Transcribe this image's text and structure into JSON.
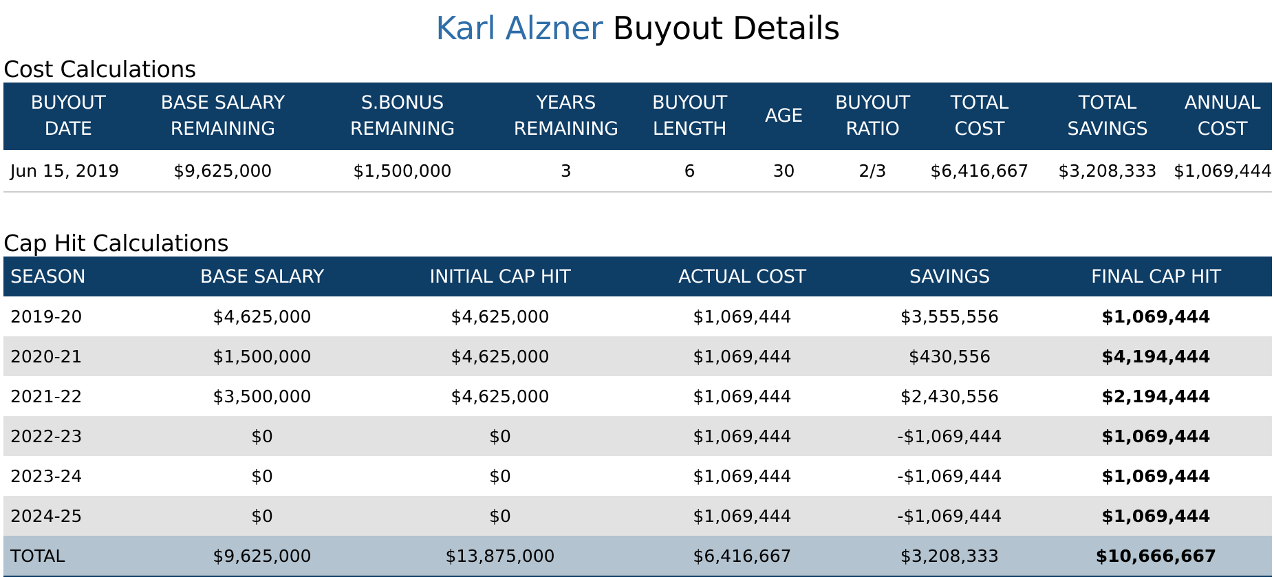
{
  "page": {
    "player_name": "Karl Alzner",
    "title_suffix": "Buyout Details"
  },
  "cost": {
    "section_title": "Cost Calculations",
    "header": {
      "buyout_date": [
        "BUYOUT",
        "DATE"
      ],
      "base_salary_remaining": [
        "BASE SALARY",
        "REMAINING"
      ],
      "sbonus_remaining": [
        "S.BONUS",
        "REMAINING"
      ],
      "years_remaining": [
        "YEARS",
        "REMAINING"
      ],
      "buyout_length": [
        "BUYOUT",
        "LENGTH"
      ],
      "age": "AGE",
      "buyout_ratio": [
        "BUYOUT",
        "RATIO"
      ],
      "total_cost": [
        "TOTAL",
        "COST"
      ],
      "total_savings": [
        "TOTAL",
        "SAVINGS"
      ],
      "annual_cost": [
        "ANNUAL",
        "COST"
      ]
    },
    "row": {
      "buyout_date": "Jun 15, 2019",
      "base_salary_remaining": "$9,625,000",
      "sbonus_remaining": "$1,500,000",
      "years_remaining": "3",
      "buyout_length": "6",
      "age": "30",
      "buyout_ratio": "2/3",
      "total_cost": "$6,416,667",
      "total_savings": "$3,208,333",
      "annual_cost": "$1,069,444"
    }
  },
  "cap": {
    "section_title": "Cap Hit Calculations",
    "header": {
      "season": "SEASON",
      "base_salary": "BASE SALARY",
      "initial_cap_hit": "INITIAL CAP HIT",
      "actual_cost": "ACTUAL COST",
      "savings": "SAVINGS",
      "final_cap_hit": "FINAL CAP HIT"
    },
    "rows": [
      {
        "season": "2019-20",
        "base_salary": "$4,625,000",
        "initial_cap_hit": "$4,625,000",
        "actual_cost": "$1,069,444",
        "savings": "$3,555,556",
        "final_cap_hit": "$1,069,444"
      },
      {
        "season": "2020-21",
        "base_salary": "$1,500,000",
        "initial_cap_hit": "$4,625,000",
        "actual_cost": "$1,069,444",
        "savings": "$430,556",
        "final_cap_hit": "$4,194,444"
      },
      {
        "season": "2021-22",
        "base_salary": "$3,500,000",
        "initial_cap_hit": "$4,625,000",
        "actual_cost": "$1,069,444",
        "savings": "$2,430,556",
        "final_cap_hit": "$2,194,444"
      },
      {
        "season": "2022-23",
        "base_salary": "$0",
        "initial_cap_hit": "$0",
        "actual_cost": "$1,069,444",
        "savings": "-$1,069,444",
        "final_cap_hit": "$1,069,444"
      },
      {
        "season": "2023-24",
        "base_salary": "$0",
        "initial_cap_hit": "$0",
        "actual_cost": "$1,069,444",
        "savings": "-$1,069,444",
        "final_cap_hit": "$1,069,444"
      },
      {
        "season": "2024-25",
        "base_salary": "$0",
        "initial_cap_hit": "$0",
        "actual_cost": "$1,069,444",
        "savings": "-$1,069,444",
        "final_cap_hit": "$1,069,444"
      }
    ],
    "total": {
      "season": "TOTAL",
      "base_salary": "$9,625,000",
      "initial_cap_hit": "$13,875,000",
      "actual_cost": "$6,416,667",
      "savings": "$3,208,333",
      "final_cap_hit": "$10,666,667"
    }
  },
  "colors": {
    "header_bg": "#0e3d66",
    "player_name": "#2f6ea8",
    "alt_row_bg": "#e2e2e2",
    "total_row_bg": "#b3c3d0"
  }
}
